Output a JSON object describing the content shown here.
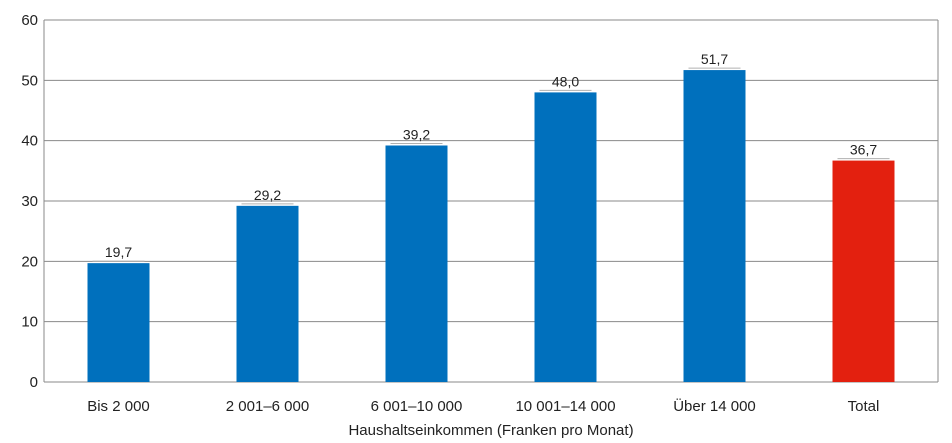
{
  "chart_data": {
    "type": "bar",
    "categories": [
      "Bis 2 000",
      "2 001–6 000",
      "6 001–10 000",
      "10 001–14 000",
      "Über 14 000",
      "Total"
    ],
    "values": [
      19.7,
      29.2,
      39.2,
      48.0,
      51.7,
      36.7
    ],
    "value_labels": [
      "19,7",
      "29,2",
      "39,2",
      "48,0",
      "51,7",
      "36,7"
    ],
    "title": "",
    "xlabel": "Haushaltseinkommen (Franken pro Monat)",
    "ylabel": "",
    "ylim": [
      0,
      60
    ],
    "yticks": [
      0,
      10,
      20,
      30,
      40,
      50,
      60
    ],
    "grid": true,
    "colors": {
      "bar": "#0070bd",
      "highlight": "#e3200f",
      "grid": "#8a8a8a",
      "plot_border": "#8a8a8a",
      "label_underline": "#b0b0b0"
    },
    "highlight_category": "Total"
  }
}
